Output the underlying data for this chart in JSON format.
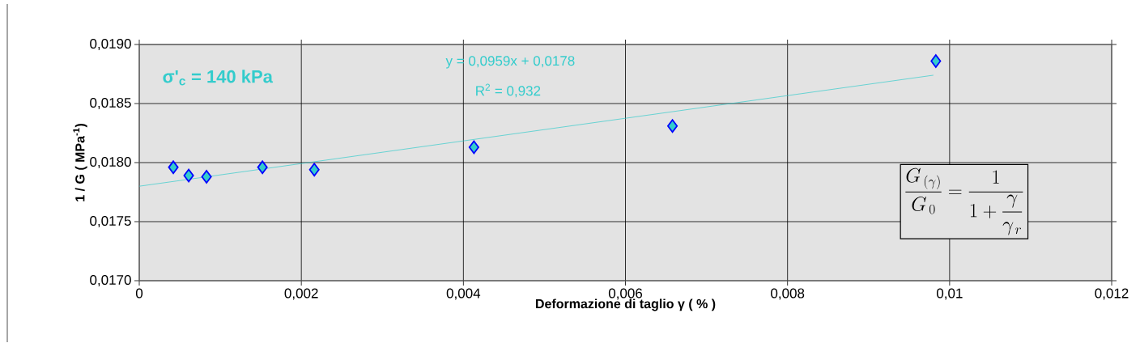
{
  "chart_data": {
    "type": "scatter",
    "xlabel": "Deformazione di taglio γ   ( % )",
    "ylabel": "1 / G    ( MPa$^{-1}$)",
    "xlim": [
      0,
      0.012
    ],
    "ylim": [
      0.017,
      0.019
    ],
    "xticks": [
      0,
      {
        "value": 0.002,
        "label": "0,002"
      },
      {
        "value": 0.004,
        "label": "0,004"
      },
      {
        "value": 0.006,
        "label": "0,006"
      },
      {
        "value": 0.008,
        "label": "0,008"
      },
      {
        "value": 0.01,
        "label": "0,01"
      },
      {
        "value": 0.012,
        "label": "0,012"
      }
    ],
    "yticks": [
      {
        "value": 0.017,
        "label": "0,0170"
      },
      {
        "value": 0.0175,
        "label": "0,0175"
      },
      {
        "value": 0.018,
        "label": "0,0180"
      },
      {
        "value": 0.0185,
        "label": "0,0185"
      },
      {
        "value": 0.019,
        "label": "0,0190"
      }
    ],
    "grid": true,
    "series": [
      {
        "marker": "diamond",
        "color": "#33cccc",
        "x": [
          0.00042,
          0.00061,
          0.00083,
          0.00152,
          0.00216,
          0.00413,
          0.00658,
          0.00983
        ],
        "values": [
          0.01796,
          0.01789,
          0.01788,
          0.01796,
          0.01794,
          0.01813,
          0.01831,
          0.01886
        ]
      },
      {
        "type": "line",
        "marker": "none",
        "color": "#33cccc",
        "x": [
          0,
          0.0098
        ],
        "values": [
          0.0178,
          0.01874
        ]
      }
    ],
    "annotations": [
      "σ'$_{c}$ = 140 kPa",
      "y = 0,0959x + 0,0178",
      "R$^{2}$ = 0,932",
      "\\frac{G_{\\,(\\gamma)}}{G_{\\,0}} = \\frac{1}{1+\\dfrac{\\gamma}{\\gamma_{\\,r}}}"
    ]
  }
}
